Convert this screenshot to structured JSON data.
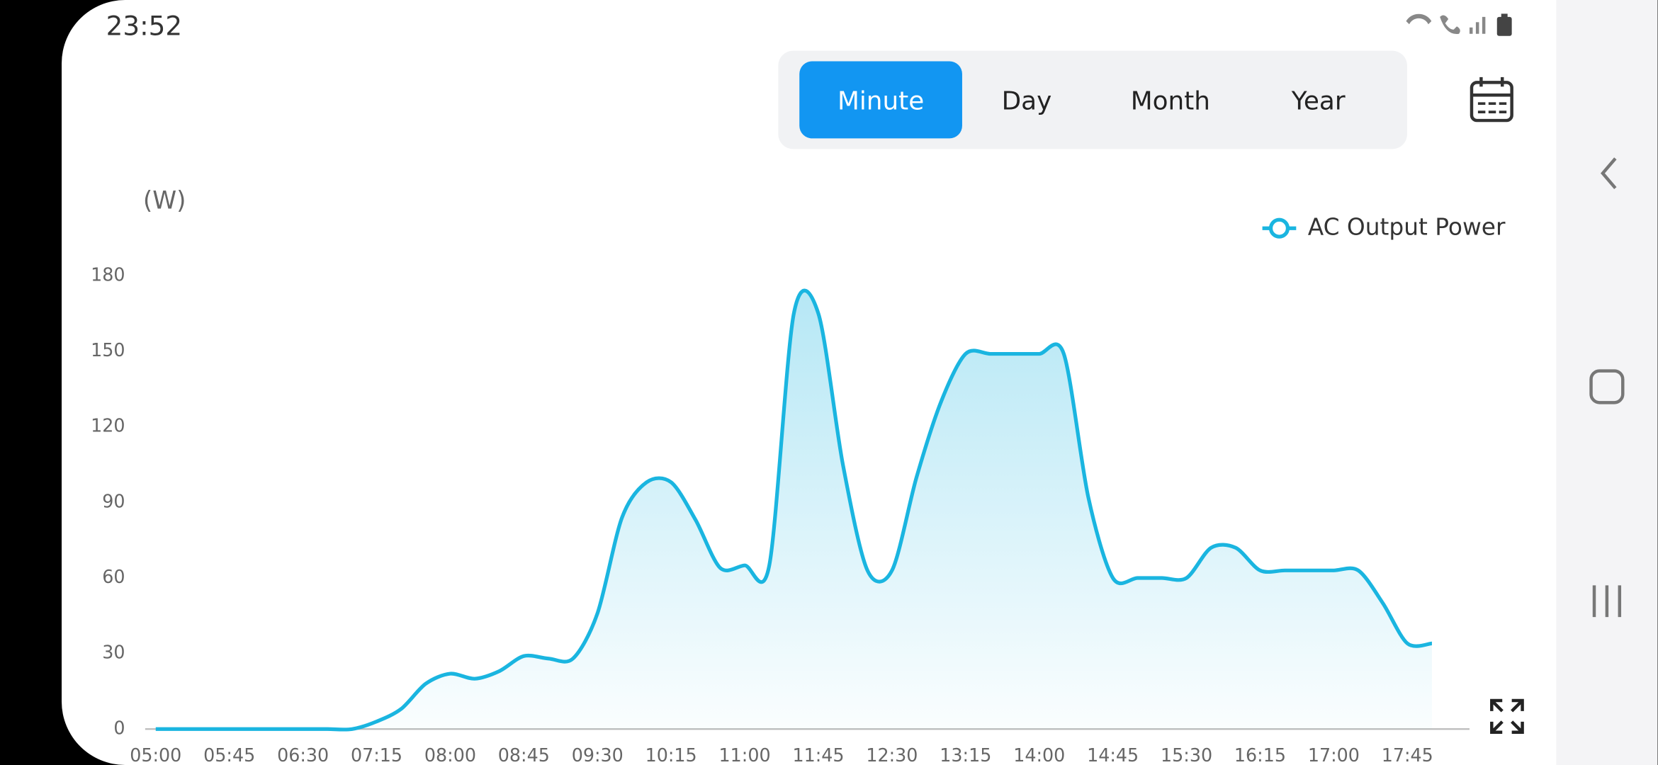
{
  "status_bar": {
    "time": "23:52"
  },
  "tabs": {
    "items": [
      "Minute",
      "Day",
      "Month",
      "Year"
    ],
    "selected": 0
  },
  "chart_data": {
    "type": "line",
    "y_label": "(W)",
    "categories": [
      "05:00",
      null,
      null,
      "05:45",
      null,
      null,
      "06:30",
      null,
      null,
      "07:15",
      null,
      null,
      "08:00",
      null,
      null,
      "08:45",
      null,
      null,
      "09:30",
      null,
      null,
      "10:15",
      null,
      null,
      "11:00",
      null,
      null,
      "11:45",
      null,
      null,
      "12:30",
      null,
      null,
      "13:15",
      null,
      null,
      "14:00",
      null,
      null,
      "14:45",
      null,
      null,
      "15:30",
      null,
      null,
      "16:15",
      null,
      null,
      "17:00",
      null,
      null,
      "17:45",
      null
    ],
    "series": [
      {
        "name": "AC Output Power",
        "color": "#1ab5e0",
        "values": [
          0,
          0,
          0,
          0,
          0,
          0,
          0,
          0,
          0,
          3,
          8,
          18,
          22,
          20,
          23,
          29,
          28,
          28,
          46,
          84,
          98,
          98,
          83,
          64,
          65,
          65,
          165,
          165,
          105,
          63,
          63,
          100,
          130,
          149,
          149,
          149,
          149,
          149,
          92,
          60,
          60,
          60,
          60,
          72,
          72,
          63,
          63,
          63,
          63,
          63,
          50,
          34,
          34
        ]
      }
    ],
    "ylim": [
      0,
      180
    ],
    "yticks": [
      0,
      30,
      60,
      90,
      120,
      150,
      180
    ],
    "grid": false,
    "legend": "top-right"
  }
}
